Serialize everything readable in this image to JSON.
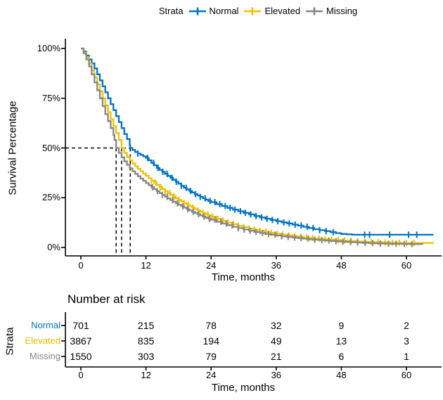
{
  "legend": {
    "title": "Strata",
    "items": [
      {
        "label": "Normal",
        "color": "#0073C2"
      },
      {
        "label": "Elevated",
        "color": "#EFC000"
      },
      {
        "label": "Missing",
        "color": "#868686"
      }
    ]
  },
  "chart_data": {
    "type": "line",
    "subtype": "kaplan-meier-step",
    "title": "",
    "ylabel": "Survival Percentage",
    "xlabel": "Time, months",
    "x_ticks": [
      0,
      12,
      24,
      36,
      48,
      60
    ],
    "y_ticks": [
      "0%",
      "25%",
      "50%",
      "75%",
      "100%"
    ],
    "y_tick_values": [
      0,
      25,
      50,
      75,
      100
    ],
    "xlim": [
      -3,
      66
    ],
    "ylim": [
      -5,
      105
    ],
    "grid": false,
    "legend_position": "top",
    "median_reference": {
      "survival_percent": 50,
      "median_times": [
        6.5,
        7.5,
        9.1
      ]
    },
    "series": [
      {
        "name": "Normal",
        "color": "#0073C2",
        "points": [
          [
            0,
            100
          ],
          [
            0.5,
            98.5
          ],
          [
            1,
            96.5
          ],
          [
            1.5,
            94.5
          ],
          [
            2,
            92.5
          ],
          [
            2.5,
            90
          ],
          [
            3,
            87
          ],
          [
            3.5,
            84
          ],
          [
            4,
            81
          ],
          [
            4.5,
            78
          ],
          [
            5,
            75
          ],
          [
            5.5,
            72
          ],
          [
            6,
            69
          ],
          [
            6.5,
            66
          ],
          [
            7,
            63
          ],
          [
            7.5,
            60
          ],
          [
            8,
            57
          ],
          [
            8.5,
            54.5
          ],
          [
            9,
            51.5
          ],
          [
            9.1,
            50
          ],
          [
            9.5,
            49
          ],
          [
            10,
            48
          ],
          [
            10.5,
            47.2
          ],
          [
            11,
            46.5
          ],
          [
            11.5,
            45.8
          ],
          [
            12,
            45
          ],
          [
            12.5,
            43.8
          ],
          [
            13,
            42.5
          ],
          [
            13.5,
            41.3
          ],
          [
            14,
            40
          ],
          [
            14.5,
            39
          ],
          [
            15,
            38
          ],
          [
            15.5,
            37
          ],
          [
            16,
            36
          ],
          [
            16.5,
            35
          ],
          [
            17,
            34
          ],
          [
            17.5,
            33
          ],
          [
            18,
            32
          ],
          [
            18.5,
            31
          ],
          [
            19,
            30
          ],
          [
            19.5,
            29.2
          ],
          [
            20,
            28.4
          ],
          [
            20.5,
            27.6
          ],
          [
            21,
            26.8
          ],
          [
            21.5,
            26.1
          ],
          [
            22,
            25.4
          ],
          [
            22.5,
            24.7
          ],
          [
            23,
            24
          ],
          [
            23.5,
            23.4
          ],
          [
            24,
            22.8
          ],
          [
            25,
            21.8
          ],
          [
            26,
            20.8
          ],
          [
            27,
            19.9
          ],
          [
            28,
            19
          ],
          [
            29,
            18.2
          ],
          [
            30,
            17.4
          ],
          [
            31,
            16.6
          ],
          [
            32,
            15.8
          ],
          [
            33,
            15.1
          ],
          [
            34,
            14.4
          ],
          [
            35,
            13.8
          ],
          [
            36,
            13.2
          ],
          [
            37,
            12.6
          ],
          [
            38,
            12.1
          ],
          [
            39,
            11.5
          ],
          [
            40,
            11
          ],
          [
            41,
            10.4
          ],
          [
            42,
            9.8
          ],
          [
            43,
            9.2
          ],
          [
            44,
            8.7
          ],
          [
            45,
            8.2
          ],
          [
            46,
            7.7
          ],
          [
            47,
            7.2
          ],
          [
            48,
            6.8
          ],
          [
            49,
            6.6
          ],
          [
            50,
            6.4
          ],
          [
            65,
            6.4
          ]
        ],
        "censor_times": [
          10.5,
          12.3,
          13.4,
          14.2,
          15.1,
          15.9,
          16.8,
          17.6,
          18.5,
          19.4,
          20.2,
          21.1,
          22.0,
          22.9,
          23.8,
          24.7,
          25.6,
          26.6,
          27.5,
          28.4,
          29.4,
          30.3,
          31.3,
          32.3,
          33.3,
          34.3,
          35.3,
          36.3,
          37.4,
          38.4,
          39.5,
          40.6,
          41.7,
          42.8,
          44.0,
          45.2,
          46.5,
          52.3,
          53.2,
          56.9,
          60.4,
          61.9
        ]
      },
      {
        "name": "Elevated",
        "color": "#EFC000",
        "points": [
          [
            0,
            100
          ],
          [
            0.5,
            98
          ],
          [
            1,
            95.5
          ],
          [
            1.5,
            92.5
          ],
          [
            2,
            89
          ],
          [
            2.5,
            85.5
          ],
          [
            3,
            82
          ],
          [
            3.5,
            78.5
          ],
          [
            4,
            75
          ],
          [
            4.5,
            71.5
          ],
          [
            5,
            68
          ],
          [
            5.5,
            64.5
          ],
          [
            6,
            61
          ],
          [
            6.5,
            57.5
          ],
          [
            7,
            54
          ],
          [
            7.5,
            50
          ],
          [
            8,
            47.5
          ],
          [
            8.5,
            45.5
          ],
          [
            9,
            43.8
          ],
          [
            9.5,
            42.2
          ],
          [
            10,
            40.8
          ],
          [
            10.5,
            39.5
          ],
          [
            11,
            38.3
          ],
          [
            11.5,
            37.1
          ],
          [
            12,
            36
          ],
          [
            12.5,
            34.8
          ],
          [
            13,
            33.6
          ],
          [
            13.5,
            32.5
          ],
          [
            14,
            31.4
          ],
          [
            14.5,
            30.3
          ],
          [
            15,
            29.3
          ],
          [
            15.5,
            28.3
          ],
          [
            16,
            27.4
          ],
          [
            16.5,
            26.5
          ],
          [
            17,
            25.6
          ],
          [
            17.5,
            24.7
          ],
          [
            18,
            23.9
          ],
          [
            18.5,
            23.1
          ],
          [
            19,
            22.3
          ],
          [
            19.5,
            21.5
          ],
          [
            20,
            20.8
          ],
          [
            20.5,
            20
          ],
          [
            21,
            19.3
          ],
          [
            21.5,
            18.6
          ],
          [
            22,
            18
          ],
          [
            22.5,
            17.3
          ],
          [
            23,
            16.7
          ],
          [
            23.5,
            16.1
          ],
          [
            24,
            15.5
          ],
          [
            25,
            14.4
          ],
          [
            26,
            13.4
          ],
          [
            27,
            12.5
          ],
          [
            28,
            11.7
          ],
          [
            29,
            10.9
          ],
          [
            30,
            10.2
          ],
          [
            31,
            9.5
          ],
          [
            32,
            8.9
          ],
          [
            33,
            8.3
          ],
          [
            34,
            7.8
          ],
          [
            35,
            7.3
          ],
          [
            36,
            6.9
          ],
          [
            37,
            6.5
          ],
          [
            38,
            6.1
          ],
          [
            39,
            5.7
          ],
          [
            40,
            5.4
          ],
          [
            41,
            5.1
          ],
          [
            42,
            4.8
          ],
          [
            43,
            4.5
          ],
          [
            44,
            4.3
          ],
          [
            45,
            4.1
          ],
          [
            46,
            3.9
          ],
          [
            47,
            3.7
          ],
          [
            48,
            3.5
          ],
          [
            49,
            3.3
          ],
          [
            50,
            3.2
          ],
          [
            51,
            3.0
          ],
          [
            52,
            2.9
          ],
          [
            53,
            2.8
          ],
          [
            54,
            2.7
          ],
          [
            55,
            2.6
          ],
          [
            56,
            2.5
          ],
          [
            57,
            2.4
          ],
          [
            58,
            2.35
          ],
          [
            59,
            2.3
          ],
          [
            60,
            2.25
          ],
          [
            65,
            2.2
          ]
        ],
        "censor_times": [
          13.0,
          13.8,
          14.7,
          15.5,
          16.4,
          17.2,
          18.1,
          19.0,
          19.8,
          20.7,
          21.6,
          22.5,
          23.4,
          24.3,
          25.2,
          26.2,
          27.1,
          28.1,
          29.0,
          30.0,
          31.0,
          32.0,
          33.0,
          34.1,
          35.1,
          36.2,
          37.2,
          38.3,
          39.4,
          40.5,
          41.6,
          42.7,
          43.9,
          45.0,
          46.2,
          47.4,
          48.6,
          49.8,
          51.0,
          52.3,
          53.5,
          54.8,
          56.1,
          57.4,
          58.7,
          60.0,
          61.4
        ]
      },
      {
        "name": "Missing",
        "color": "#868686",
        "points": [
          [
            0,
            100
          ],
          [
            0.5,
            97.5
          ],
          [
            1,
            94.5
          ],
          [
            1.5,
            91
          ],
          [
            2,
            87
          ],
          [
            2.5,
            83
          ],
          [
            3,
            79
          ],
          [
            3.5,
            75
          ],
          [
            4,
            71
          ],
          [
            4.5,
            67
          ],
          [
            5,
            63.5
          ],
          [
            5.5,
            60
          ],
          [
            6,
            56.5
          ],
          [
            6.2,
            54
          ],
          [
            6.5,
            50
          ],
          [
            7,
            47.5
          ],
          [
            7.5,
            45.3
          ],
          [
            8,
            43.3
          ],
          [
            8.5,
            41.5
          ],
          [
            9,
            39.8
          ],
          [
            9.5,
            38.3
          ],
          [
            10,
            37
          ],
          [
            10.5,
            35.8
          ],
          [
            11,
            34.6
          ],
          [
            11.5,
            33.5
          ],
          [
            12,
            32.4
          ],
          [
            12.5,
            31.3
          ],
          [
            13,
            30.3
          ],
          [
            13.5,
            29.3
          ],
          [
            14,
            28.3
          ],
          [
            14.5,
            27.3
          ],
          [
            15,
            26.4
          ],
          [
            15.5,
            25.5
          ],
          [
            16,
            24.6
          ],
          [
            16.5,
            23.8
          ],
          [
            17,
            23
          ],
          [
            17.5,
            22.2
          ],
          [
            18,
            21.4
          ],
          [
            18.5,
            20.7
          ],
          [
            19,
            20
          ],
          [
            19.5,
            19.3
          ],
          [
            20,
            18.6
          ],
          [
            20.5,
            17.9
          ],
          [
            21,
            17.3
          ],
          [
            21.5,
            16.7
          ],
          [
            22,
            16.1
          ],
          [
            22.5,
            15.5
          ],
          [
            23,
            14.9
          ],
          [
            23.5,
            14.4
          ],
          [
            24,
            13.9
          ],
          [
            25,
            12.9
          ],
          [
            26,
            12
          ],
          [
            27,
            11.2
          ],
          [
            28,
            10.4
          ],
          [
            29,
            9.7
          ],
          [
            30,
            9
          ],
          [
            31,
            8.4
          ],
          [
            32,
            7.8
          ],
          [
            33,
            7.3
          ],
          [
            34,
            6.8
          ],
          [
            35,
            6.4
          ],
          [
            36,
            6
          ],
          [
            37,
            5.6
          ],
          [
            38,
            5.3
          ],
          [
            39,
            5
          ],
          [
            40,
            4.7
          ],
          [
            41,
            4.4
          ],
          [
            42,
            4.1
          ],
          [
            43,
            3.9
          ],
          [
            44,
            3.7
          ],
          [
            45,
            3.5
          ],
          [
            46,
            3.3
          ],
          [
            47,
            3.1
          ],
          [
            48,
            2.9
          ],
          [
            49,
            2.75
          ],
          [
            50,
            2.6
          ],
          [
            51,
            2.45
          ],
          [
            52,
            2.3
          ],
          [
            53,
            2.2
          ],
          [
            54,
            2.1
          ],
          [
            55,
            2
          ],
          [
            56,
            1.9
          ],
          [
            57,
            1.85
          ],
          [
            58,
            1.8
          ],
          [
            59,
            1.75
          ],
          [
            60,
            1.7
          ],
          [
            63,
            1.65
          ]
        ],
        "censor_times": [
          13.2,
          14.1,
          15.0,
          15.9,
          16.9,
          17.8,
          18.8,
          19.7,
          20.7,
          21.7,
          22.7,
          23.7,
          24.7,
          25.8,
          26.8,
          27.9,
          29.0,
          30.1,
          31.2,
          32.3,
          33.5,
          34.6,
          35.8,
          37.0,
          38.2,
          39.4,
          40.6,
          41.9,
          43.1,
          44.4,
          45.7,
          47.0,
          48.3,
          49.7,
          51.0,
          52.4,
          53.8,
          55.2,
          56.7,
          58.1,
          59.6,
          61.0
        ]
      }
    ]
  },
  "risk_table": {
    "title": "Number at risk",
    "axis_label": "Strata",
    "xlabel": "Time, months",
    "x_ticks": [
      0,
      12,
      24,
      36,
      48,
      60
    ],
    "rows": [
      {
        "label": "Normal",
        "color": "#0073C2",
        "values": [
          701,
          215,
          78,
          32,
          9,
          2
        ]
      },
      {
        "label": "Elevated",
        "color": "#EFC000",
        "values": [
          3867,
          835,
          194,
          49,
          13,
          3
        ]
      },
      {
        "label": "Missing",
        "color": "#868686",
        "values": [
          1550,
          303,
          79,
          21,
          6,
          1
        ]
      }
    ]
  }
}
